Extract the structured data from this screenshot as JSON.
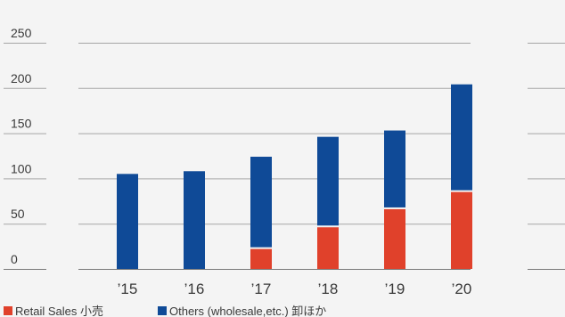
{
  "chart_data": {
    "type": "bar",
    "stacked": true,
    "categories": [
      "’15",
      "’16",
      "’17",
      "’18",
      "’19",
      "’20"
    ],
    "series": [
      {
        "name": "Retail Sales 小売",
        "color": "#e0412b",
        "values": [
          0,
          0,
          22,
          46,
          66,
          85
        ]
      },
      {
        "name": "Others (wholesale,etc.) 卸ほか",
        "color": "#0f4a97",
        "values": [
          105,
          108,
          102,
          100,
          87,
          119
        ]
      }
    ],
    "yticks": [
      0,
      50,
      100,
      150,
      200,
      250
    ],
    "ylim": [
      0,
      250
    ],
    "grid": true,
    "legend_position": "bottom-left"
  }
}
